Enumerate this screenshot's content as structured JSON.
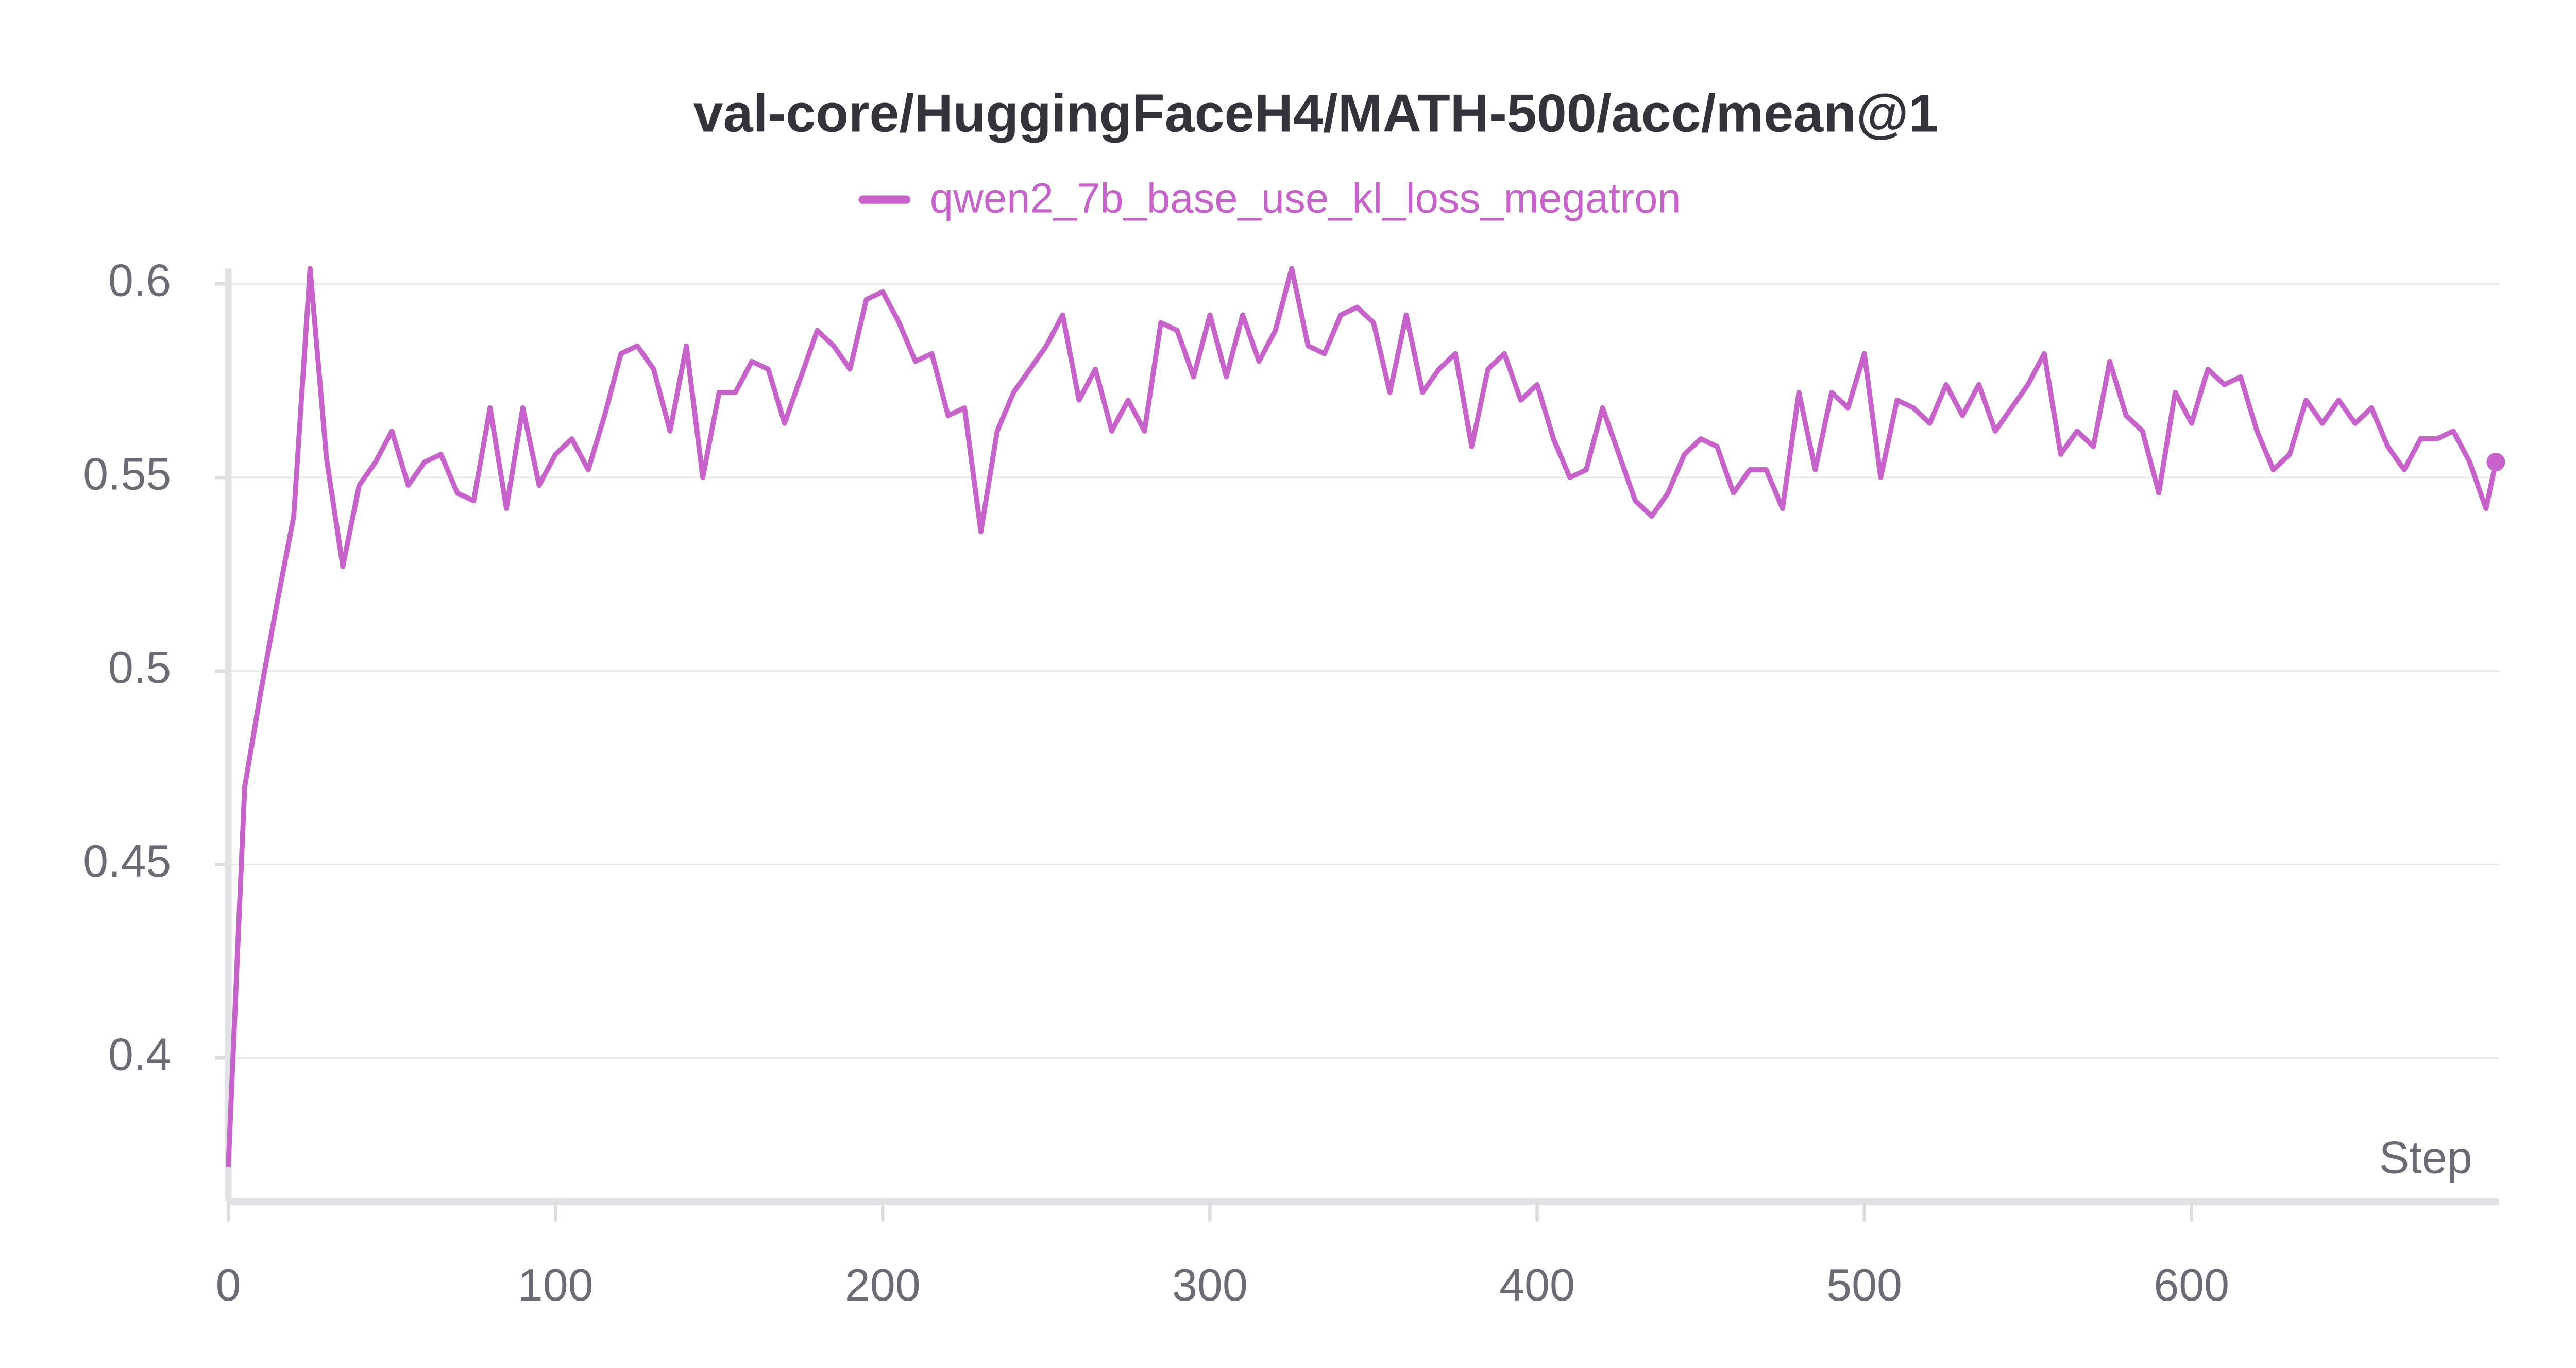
{
  "chart_data": {
    "type": "line",
    "title": "val-core/HuggingFaceH4/MATH-500/acc/mean@1",
    "x_label": "Step",
    "grid": true,
    "legend": "top",
    "xlim": [
      0,
      694
    ],
    "ylim": [
      0.363,
      0.604
    ],
    "xticks": [
      0,
      100,
      200,
      300,
      400,
      500,
      600
    ],
    "yticks": [
      0.4,
      0.45,
      0.5,
      0.55,
      0.6
    ],
    "x": [
      0,
      5,
      10,
      15,
      20,
      25,
      30,
      35,
      40,
      45,
      50,
      55,
      60,
      65,
      70,
      75,
      80,
      85,
      90,
      95,
      100,
      105,
      110,
      115,
      120,
      125,
      130,
      135,
      140,
      145,
      150,
      155,
      160,
      165,
      170,
      175,
      180,
      185,
      190,
      195,
      200,
      205,
      210,
      215,
      220,
      225,
      230,
      235,
      240,
      245,
      250,
      255,
      260,
      265,
      270,
      275,
      280,
      285,
      290,
      295,
      300,
      305,
      310,
      315,
      320,
      325,
      330,
      335,
      340,
      345,
      350,
      355,
      360,
      365,
      370,
      375,
      380,
      385,
      390,
      395,
      400,
      405,
      410,
      415,
      420,
      425,
      430,
      435,
      440,
      445,
      450,
      455,
      460,
      465,
      470,
      475,
      480,
      485,
      490,
      495,
      500,
      505,
      510,
      515,
      520,
      525,
      530,
      535,
      540,
      545,
      550,
      555,
      560,
      565,
      570,
      575,
      580,
      585,
      590,
      595,
      600,
      605,
      610,
      615,
      620,
      625,
      630,
      635,
      640,
      645,
      650,
      655,
      660,
      665,
      670,
      675,
      680,
      685,
      690,
      693
    ],
    "series": [
      {
        "name": "qwen2_7b_base_use_kl_loss_megatron",
        "color": "#c662c9",
        "values": [
          0.372,
          0.47,
          0.495,
          0.518,
          0.54,
          0.604,
          0.555,
          0.527,
          0.548,
          0.554,
          0.562,
          0.548,
          0.554,
          0.556,
          0.546,
          0.544,
          0.568,
          0.542,
          0.568,
          0.548,
          0.556,
          0.56,
          0.552,
          0.566,
          0.582,
          0.584,
          0.578,
          0.562,
          0.584,
          0.55,
          0.572,
          0.572,
          0.58,
          0.578,
          0.564,
          0.576,
          0.588,
          0.584,
          0.578,
          0.596,
          0.598,
          0.59,
          0.58,
          0.582,
          0.566,
          0.568,
          0.536,
          0.562,
          0.572,
          0.578,
          0.584,
          0.592,
          0.57,
          0.578,
          0.562,
          0.57,
          0.562,
          0.59,
          0.588,
          0.576,
          0.592,
          0.576,
          0.592,
          0.58,
          0.588,
          0.604,
          0.584,
          0.582,
          0.592,
          0.594,
          0.59,
          0.572,
          0.592,
          0.572,
          0.578,
          0.582,
          0.558,
          0.578,
          0.582,
          0.57,
          0.574,
          0.56,
          0.55,
          0.552,
          0.568,
          0.556,
          0.544,
          0.54,
          0.546,
          0.556,
          0.56,
          0.558,
          0.546,
          0.552,
          0.552,
          0.542,
          0.572,
          0.552,
          0.572,
          0.568,
          0.582,
          0.55,
          0.57,
          0.568,
          0.564,
          0.574,
          0.566,
          0.574,
          0.562,
          0.568,
          0.574,
          0.582,
          0.556,
          0.562,
          0.558,
          0.58,
          0.566,
          0.562,
          0.546,
          0.572,
          0.564,
          0.578,
          0.574,
          0.576,
          0.562,
          0.552,
          0.556,
          0.57,
          0.564,
          0.57,
          0.564,
          0.568,
          0.558,
          0.552,
          0.56,
          0.56,
          0.562,
          0.554,
          0.542,
          0.554
        ]
      }
    ]
  }
}
